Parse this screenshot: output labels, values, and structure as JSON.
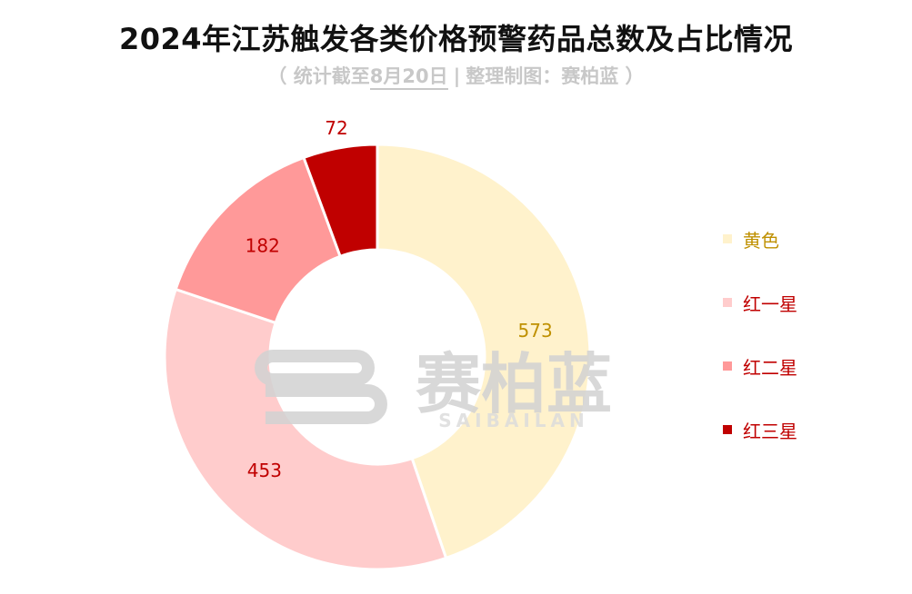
{
  "title": "2024年江苏触发各类价格预警药品总数及占比情况",
  "subtitle": {
    "open": "（ 统计截至",
    "date": "8月20日",
    "sep": "|",
    "source": "整理制图：赛柏蓝 ）"
  },
  "watermark": {
    "logo_text": "赛柏蓝",
    "logo_sub": "SAIBAILAN"
  },
  "colors": {
    "黄色": "#fff2cc",
    "红一星": "#ffcccc",
    "红二星": "#ff9999",
    "红三星": "#c00000"
  },
  "chart_data": {
    "type": "pie",
    "subtype": "donut",
    "title": "2024年江苏触发各类价格预警药品总数及占比情况",
    "legend_position": "right",
    "categories": [
      "黄色",
      "红一星",
      "红二星",
      "红三星"
    ],
    "values": [
      573,
      453,
      182,
      72
    ],
    "data_labels": [
      "573",
      "453",
      "182",
      "72"
    ],
    "colors": [
      "#fff2cc",
      "#ffcccc",
      "#ff9999",
      "#c00000"
    ],
    "label_colors": [
      "#bf9000",
      "#c00000",
      "#c00000",
      "#c00000"
    ]
  }
}
